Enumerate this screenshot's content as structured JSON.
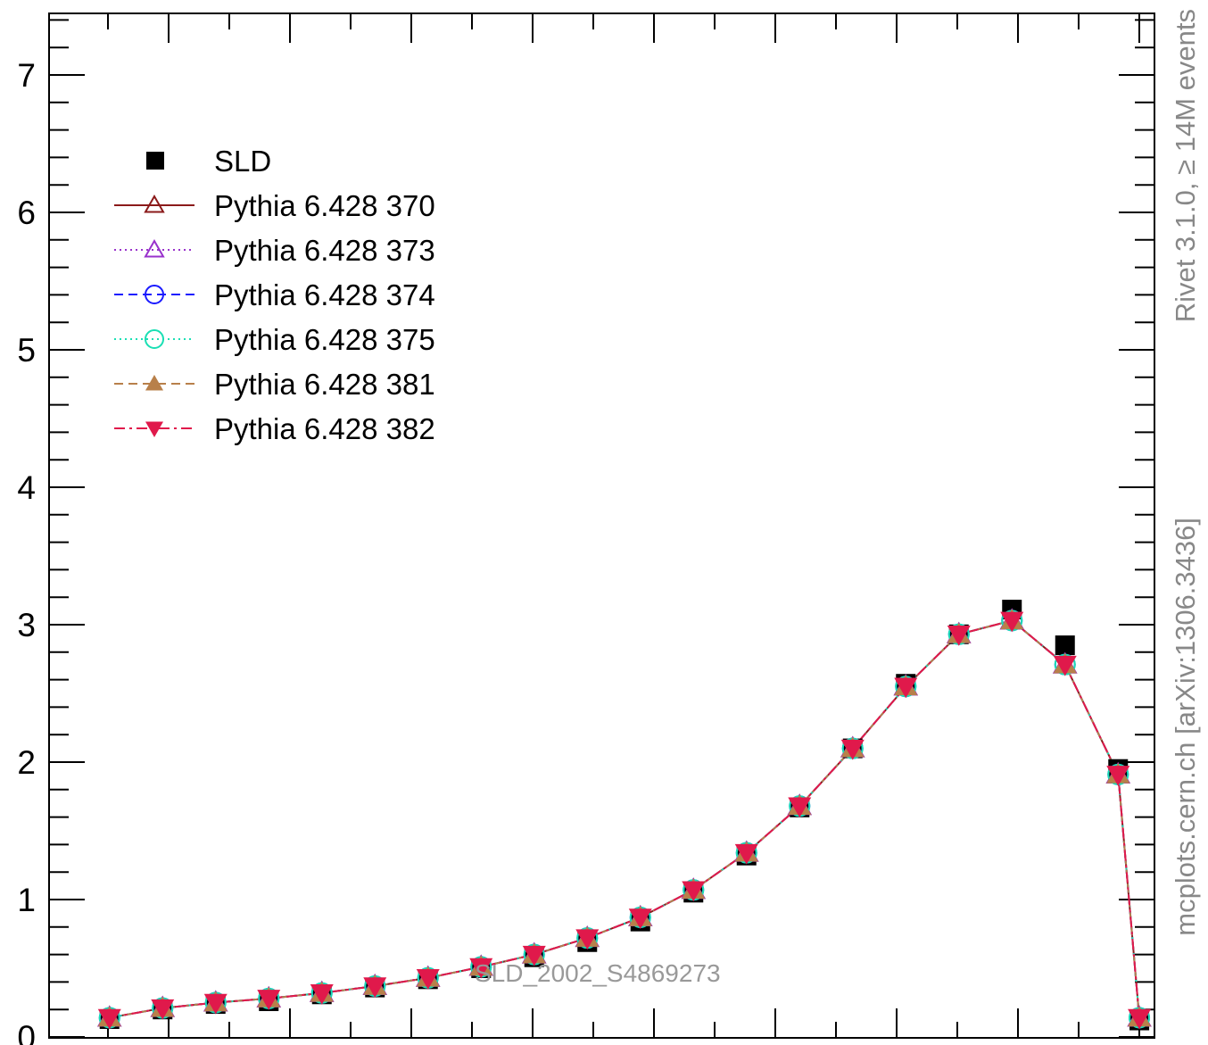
{
  "chart_data": {
    "type": "line",
    "title": "",
    "xlabel": "",
    "ylabel": "",
    "ylim": [
      0,
      7.5
    ],
    "yticks": [
      0,
      1,
      2,
      3,
      4,
      5,
      6,
      7
    ],
    "ytick_labels": [
      "0",
      "1",
      "2",
      "3",
      "4",
      "5",
      "6",
      "7"
    ],
    "xlim": [
      0,
      1
    ],
    "grid": false,
    "legend_position": "top-left",
    "x": [
      0.025,
      0.075,
      0.125,
      0.175,
      0.225,
      0.275,
      0.325,
      0.375,
      0.425,
      0.475,
      0.525,
      0.575,
      0.625,
      0.675,
      0.725,
      0.775,
      0.825,
      0.875,
      0.925,
      0.975
    ],
    "series": [
      {
        "name": "SLD",
        "style": "data",
        "color": "#000000",
        "values": [
          0.13,
          0.2,
          0.24,
          0.26,
          0.31,
          0.36,
          0.42,
          0.5,
          0.58,
          0.69,
          0.84,
          1.05,
          1.32,
          1.67,
          2.1,
          2.57,
          2.93,
          3.11,
          2.85,
          1.95
        ]
      },
      {
        "name": "Pythia 6.428 370",
        "style": "solid-open-triangle",
        "color": "#8b1a1a",
        "values": [
          0.14,
          0.21,
          0.25,
          0.28,
          0.32,
          0.37,
          0.43,
          0.51,
          0.6,
          0.72,
          0.87,
          1.07,
          1.34,
          1.68,
          2.1,
          2.55,
          2.93,
          3.03,
          2.71,
          1.91
        ]
      },
      {
        "name": "Pythia 6.428 373",
        "style": "dotted-open-triangle",
        "color": "#9932cc",
        "values": [
          0.14,
          0.21,
          0.25,
          0.28,
          0.32,
          0.37,
          0.43,
          0.51,
          0.6,
          0.72,
          0.87,
          1.07,
          1.34,
          1.68,
          2.1,
          2.55,
          2.93,
          3.03,
          2.71,
          1.91
        ]
      },
      {
        "name": "Pythia 6.428 374",
        "style": "dashed-open-circle",
        "color": "#1a1aff",
        "values": [
          0.14,
          0.21,
          0.25,
          0.28,
          0.32,
          0.37,
          0.43,
          0.51,
          0.6,
          0.72,
          0.87,
          1.07,
          1.34,
          1.68,
          2.1,
          2.55,
          2.93,
          3.03,
          2.71,
          1.91
        ]
      },
      {
        "name": "Pythia 6.428 375",
        "style": "dotted-open-circle",
        "color": "#1adfb4",
        "values": [
          0.14,
          0.21,
          0.25,
          0.28,
          0.32,
          0.37,
          0.43,
          0.51,
          0.6,
          0.72,
          0.87,
          1.07,
          1.34,
          1.68,
          2.1,
          2.55,
          2.93,
          3.03,
          2.71,
          1.91
        ]
      },
      {
        "name": "Pythia 6.428 381",
        "style": "dashed-filled-triangle",
        "color": "#b8804a",
        "values": [
          0.14,
          0.21,
          0.25,
          0.28,
          0.32,
          0.37,
          0.43,
          0.51,
          0.6,
          0.72,
          0.87,
          1.07,
          1.34,
          1.68,
          2.1,
          2.55,
          2.93,
          3.03,
          2.71,
          1.91
        ]
      },
      {
        "name": "Pythia 6.428 382",
        "style": "dashdot-filled-down-triangle",
        "color": "#e0194b",
        "values": [
          0.14,
          0.21,
          0.25,
          0.28,
          0.32,
          0.37,
          0.43,
          0.51,
          0.6,
          0.72,
          0.87,
          1.07,
          1.34,
          1.68,
          2.1,
          2.55,
          2.93,
          3.03,
          2.71,
          1.91
        ]
      }
    ],
    "last_point": {
      "x": 0.995,
      "sld": 0.12,
      "mc": 0.14
    },
    "annotations": {
      "analysis_id": "SLD_2002_S4869273",
      "side_label_top": "Rivet 3.1.0, ≥ 14M events",
      "side_label_bottom": "mcplots.cern.ch [arXiv:1306.3436]"
    }
  }
}
